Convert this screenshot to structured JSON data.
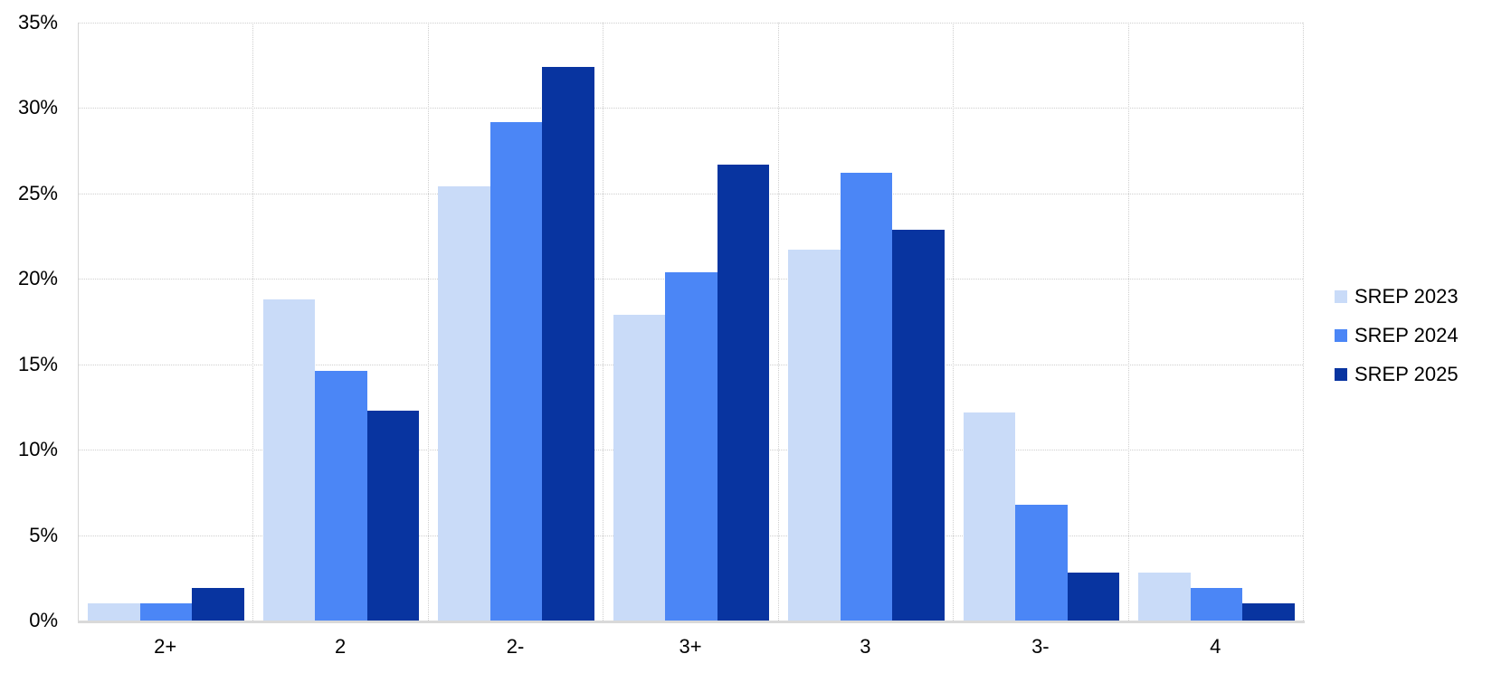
{
  "chart_data": {
    "type": "bar",
    "title": "",
    "xlabel": "",
    "ylabel": "",
    "categories": [
      "2+",
      "2",
      "2-",
      "3+",
      "3",
      "3-",
      "4"
    ],
    "series": [
      {
        "name": "SREP 2023",
        "color": "#c9dbf8",
        "values": [
          1.0,
          18.8,
          25.4,
          17.9,
          21.7,
          12.2,
          2.8
        ]
      },
      {
        "name": "SREP 2024",
        "color": "#4b86f6",
        "values": [
          1.0,
          14.6,
          29.2,
          20.4,
          26.2,
          6.8,
          1.9
        ]
      },
      {
        "name": "SREP 2025",
        "color": "#0834a0",
        "values": [
          1.9,
          12.3,
          32.4,
          26.7,
          22.9,
          2.8,
          1.0
        ]
      }
    ],
    "ylim": [
      0,
      35
    ],
    "ytick_step": 5,
    "ytick_labels": [
      "0%",
      "5%",
      "10%",
      "15%",
      "20%",
      "25%",
      "30%",
      "35%"
    ],
    "grid": true,
    "legend_position": "right"
  },
  "colors": {
    "gridline": "#cfcfcf",
    "axis_line": "#d9d9d9",
    "text": "#000000",
    "background": "#ffffff"
  }
}
